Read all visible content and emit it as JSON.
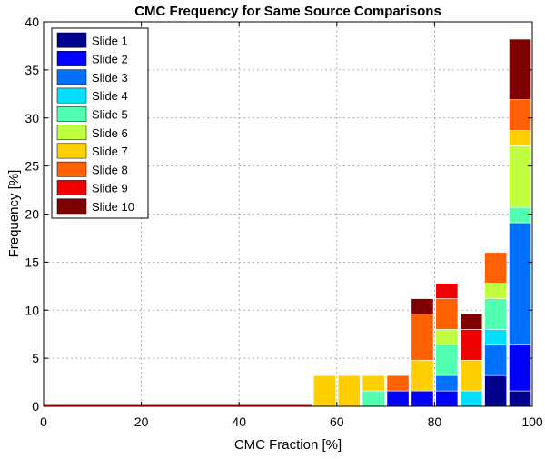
{
  "chart_data": {
    "type": "bar",
    "stacked": true,
    "title": "CMC Frequency for Same Source Comparisons",
    "xlabel": "CMC Fraction [%]",
    "ylabel": "Frequency [%]",
    "xlim": [
      0,
      100
    ],
    "ylim": [
      0,
      40
    ],
    "xticks": [
      0,
      20,
      40,
      60,
      80,
      100
    ],
    "yticks": [
      0,
      5,
      10,
      15,
      20,
      25,
      30,
      35,
      40
    ],
    "grid": true,
    "legend_position": "top-left",
    "categories": [
      57.5,
      62.5,
      67.5,
      72.5,
      77.5,
      82.5,
      87.5,
      92.5,
      97.5
    ],
    "series": [
      {
        "name": "Slide 1",
        "color": "#00008f",
        "values": [
          0,
          0,
          0,
          0,
          0,
          0,
          0,
          3.2,
          1.6
        ]
      },
      {
        "name": "Slide 2",
        "color": "#0000ff",
        "values": [
          0,
          0,
          0,
          1.6,
          1.6,
          1.6,
          0,
          0,
          4.8
        ]
      },
      {
        "name": "Slide 3",
        "color": "#0070ff",
        "values": [
          0,
          0,
          0,
          0,
          0,
          1.6,
          0,
          3.2,
          12.7
        ]
      },
      {
        "name": "Slide 4",
        "color": "#00dfff",
        "values": [
          0,
          0,
          0,
          0,
          0,
          0,
          1.6,
          1.6,
          0
        ]
      },
      {
        "name": "Slide 5",
        "color": "#50ffaf",
        "values": [
          0,
          0,
          1.6,
          0,
          0,
          3.2,
          0,
          3.2,
          1.6
        ]
      },
      {
        "name": "Slide 6",
        "color": "#bfff40",
        "values": [
          0,
          0,
          0,
          0,
          0,
          1.6,
          0,
          1.6,
          6.4
        ]
      },
      {
        "name": "Slide 7",
        "color": "#ffcf00",
        "values": [
          3.2,
          3.2,
          1.6,
          0,
          3.2,
          0,
          3.2,
          0,
          1.6
        ]
      },
      {
        "name": "Slide 8",
        "color": "#ff6000",
        "values": [
          0,
          0,
          0,
          1.6,
          4.8,
          3.2,
          0,
          3.2,
          3.2
        ]
      },
      {
        "name": "Slide 9",
        "color": "#ef0000",
        "values": [
          0,
          0,
          0,
          0,
          0,
          1.6,
          3.2,
          0,
          0
        ]
      },
      {
        "name": "Slide 10",
        "color": "#800000",
        "values": [
          0,
          0,
          0,
          0,
          1.6,
          0,
          1.6,
          0,
          6.3
        ]
      }
    ]
  }
}
